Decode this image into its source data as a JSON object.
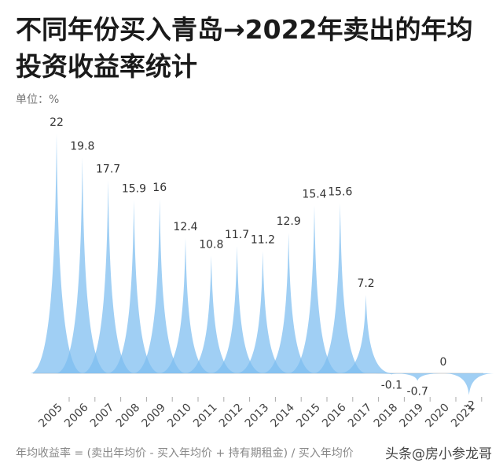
{
  "title": "不同年份买入青岛→2022年卖出的年均投资收益率统计",
  "unit_label": "单位：%",
  "footnote": "年均收益率 = (卖出年均价 - 买入年均价 + 持有期租金) / 买入年均价",
  "watermark": "头条@房小参龙哥",
  "colors": {
    "fill": "#7cbdf0",
    "fill_dark": "#5ea9e6",
    "axis": "#cccccc",
    "label": "#333333"
  },
  "chart_data": {
    "type": "area",
    "categories": [
      "2005",
      "2006",
      "2007",
      "2008",
      "2009",
      "2010",
      "2011",
      "2012",
      "2013",
      "2014",
      "2015",
      "2016",
      "2017",
      "2018",
      "2019",
      "2020",
      "2021"
    ],
    "values": [
      22,
      19.8,
      17.7,
      15.9,
      16,
      12.4,
      10.8,
      11.7,
      11.2,
      12.9,
      15.4,
      15.6,
      7.2,
      -0.1,
      -0.7,
      0,
      -2
    ],
    "value_labels": [
      "22",
      "19.8",
      "17.7",
      "15.9",
      "16",
      "12.4",
      "10.8",
      "11.7",
      "11.2",
      "12.9",
      "15.4",
      "15.6",
      "7.2",
      "-0.1",
      "-0.7",
      "0",
      "-2"
    ],
    "ylabel": "单位：%",
    "ylim": [
      -2.5,
      22.5
    ]
  }
}
